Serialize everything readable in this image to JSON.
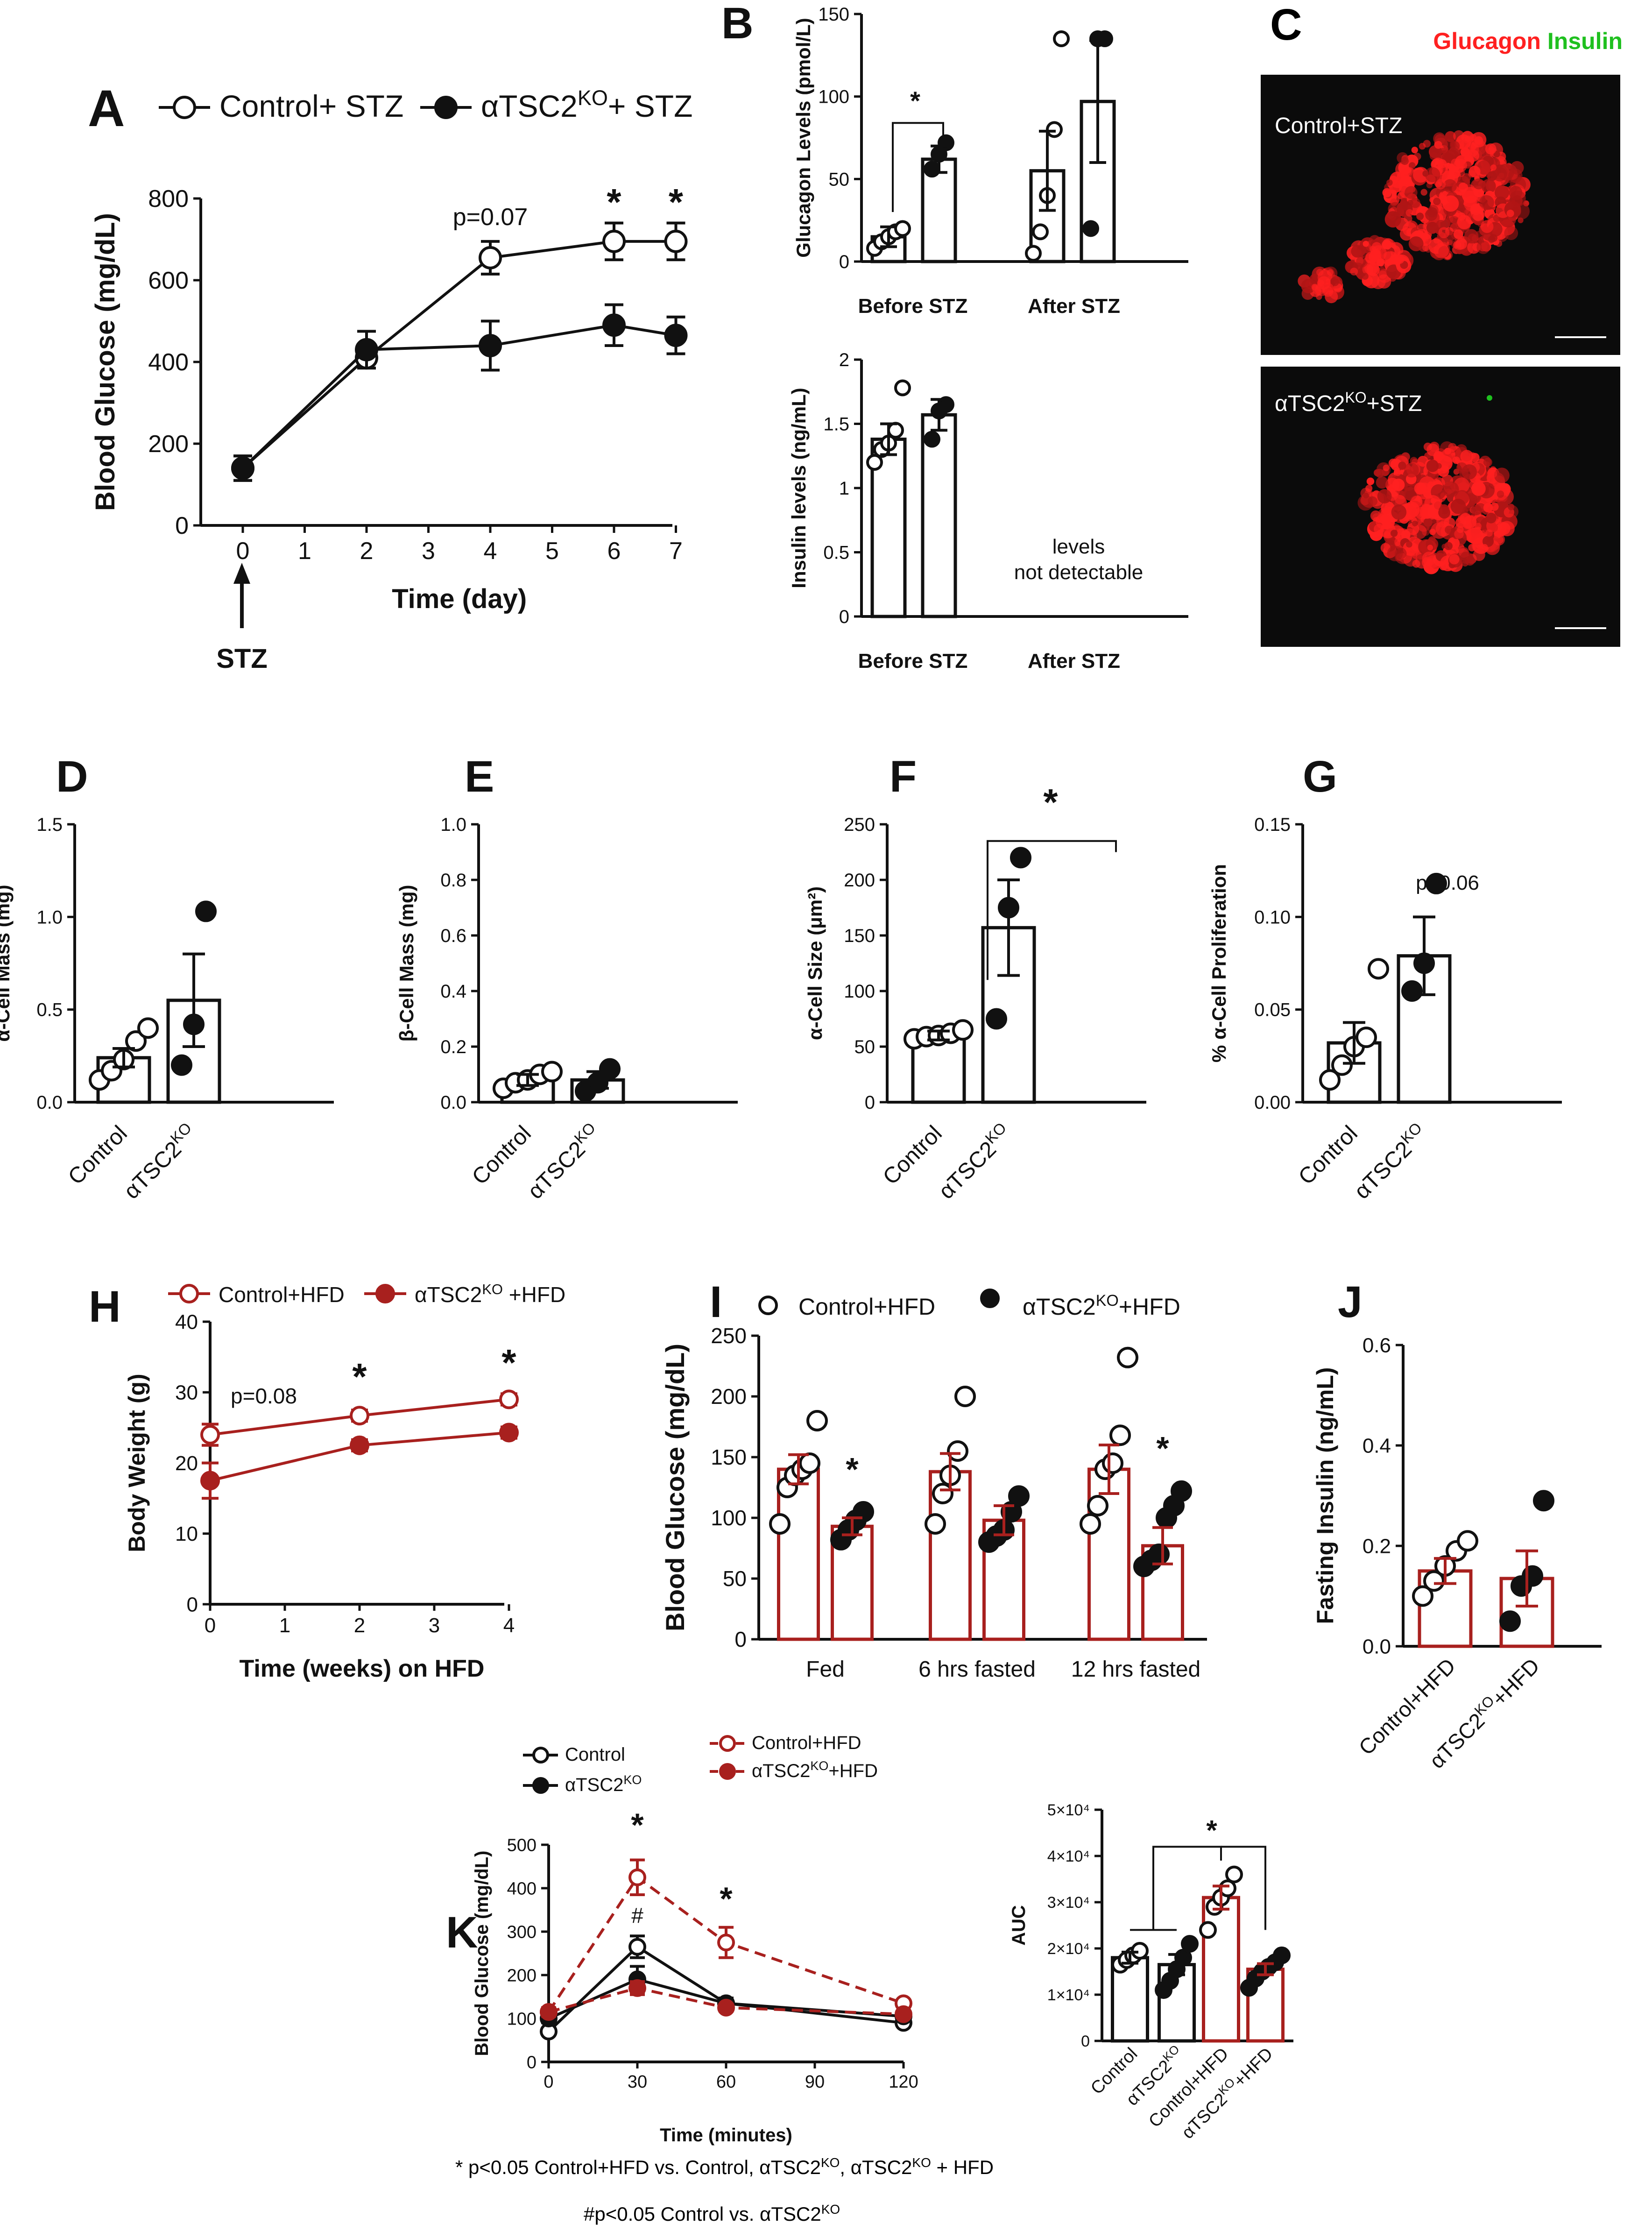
{
  "colors": {
    "black": "#111111",
    "red": "#a8201e",
    "micro_bg": "#0b0b0b",
    "glucagon": "#ff2020",
    "insulin": "#1fc01f"
  },
  "footnotes": {
    "line1": "* p<0.05 Control+HFD vs. Control, αTSC2KO, αTSC2KO + HFD",
    "line2": "#p<0.05 Control vs. αTSC2KO"
  },
  "micrographs": {
    "letter": "C",
    "title_glucagon": "Glucagon",
    "title_insulin": "Insulin",
    "top_label": "Control+STZ",
    "bottom_label": "αTSC2KO+STZ"
  },
  "chart_data": [
    {
      "id": "A",
      "type": "line",
      "letter": "A",
      "ylabel": "Blood Glucose (mg/dL)",
      "xlabel": "Time (day)",
      "ylim": [
        0,
        800
      ],
      "yticks": [
        0,
        200,
        400,
        600,
        800
      ],
      "xlim": [
        0,
        7
      ],
      "xticks": [
        0,
        1,
        2,
        3,
        4,
        5,
        6,
        7
      ],
      "x": [
        0,
        2,
        4,
        6,
        7
      ],
      "series": [
        {
          "name": "Control+ STZ",
          "marker": "open",
          "values": [
            140,
            410,
            655,
            695,
            695
          ],
          "errors": [
            30,
            25,
            40,
            45,
            45
          ]
        },
        {
          "name": "αTSC2KO+ STZ",
          "marker": "filled",
          "values": [
            140,
            430,
            440,
            490,
            465
          ],
          "errors": [
            30,
            45,
            60,
            50,
            45
          ]
        }
      ],
      "annotations": [
        {
          "text": "p=0.07",
          "x": 4
        },
        {
          "text": "*",
          "x": 6
        },
        {
          "text": "*",
          "x": 7
        }
      ],
      "arrow_label": "STZ"
    },
    {
      "id": "B1",
      "type": "bar",
      "letter": "B",
      "ylabel": "Glucagon Levels (pmol/L)",
      "ylim": [
        0,
        150
      ],
      "yticks": [
        0,
        50,
        100,
        150
      ],
      "group_labels": [
        "Before  STZ",
        "After STZ"
      ],
      "bars": [
        {
          "group": "Before STZ",
          "genotype": "Control",
          "mean": 15,
          "error": 6,
          "points": [
            8,
            12,
            15,
            18,
            20
          ]
        },
        {
          "group": "Before STZ",
          "genotype": "αTSC2KO",
          "mean": 62,
          "error": 8,
          "points": [
            56,
            65,
            72
          ]
        },
        {
          "group": "After STZ",
          "genotype": "Control",
          "mean": 55,
          "error": 24,
          "points": [
            5,
            18,
            40,
            80,
            135
          ]
        },
        {
          "group": "After STZ",
          "genotype": "αTSC2KO",
          "mean": 97,
          "error": 37,
          "points": [
            20,
            135,
            135
          ]
        }
      ],
      "significance": "*"
    },
    {
      "id": "B2",
      "type": "bar",
      "ylabel": "Insulin levels (ng/mL)",
      "ylim": [
        0,
        2.0
      ],
      "yticks": [
        0,
        0.5,
        1.0,
        1.5,
        2.0
      ],
      "group_labels": [
        "Before  STZ",
        "After STZ"
      ],
      "bars": [
        {
          "group": "Before STZ",
          "genotype": "Control",
          "mean": 1.38,
          "error": 0.12,
          "points": [
            1.2,
            1.3,
            1.35,
            1.45,
            1.78
          ]
        },
        {
          "group": "Before STZ",
          "genotype": "αTSC2KO",
          "mean": 1.57,
          "error": 0.12,
          "points": [
            1.38,
            1.6,
            1.65
          ]
        }
      ],
      "note": "levels not detectable"
    },
    {
      "id": "D",
      "type": "bar",
      "letter": "D",
      "ylabel": "α-Cell Mass (mg)",
      "ylim": [
        0,
        1.5
      ],
      "yticks": [
        0.0,
        0.5,
        1.0,
        1.5
      ],
      "categories": [
        "Control",
        "αTSC2KO"
      ],
      "bars": [
        {
          "mean": 0.24,
          "error": 0.05,
          "points": [
            0.12,
            0.17,
            0.23,
            0.33,
            0.4
          ]
        },
        {
          "mean": 0.55,
          "error": 0.25,
          "points": [
            0.2,
            0.42,
            1.03
          ]
        }
      ]
    },
    {
      "id": "E",
      "type": "bar",
      "letter": "E",
      "ylabel": "β-Cell Mass (mg)",
      "ylim": [
        0,
        1.0
      ],
      "yticks": [
        0.0,
        0.2,
        0.4,
        0.6,
        0.8,
        1.0
      ],
      "categories": [
        "Control",
        "αTSC2KO"
      ],
      "bars": [
        {
          "mean": 0.08,
          "error": 0.02,
          "points": [
            0.05,
            0.07,
            0.08,
            0.1,
            0.11
          ]
        },
        {
          "mean": 0.08,
          "error": 0.03,
          "points": [
            0.04,
            0.07,
            0.12
          ]
        }
      ]
    },
    {
      "id": "F",
      "type": "bar",
      "letter": "F",
      "ylabel": "α-Cell Size (μm²)",
      "ylim": [
        0,
        250
      ],
      "yticks": [
        0,
        50,
        100,
        150,
        200,
        250
      ],
      "categories": [
        "Control",
        "αTSC2KO"
      ],
      "bars": [
        {
          "mean": 60,
          "error": 4,
          "points": [
            57,
            59,
            60,
            62,
            65
          ]
        },
        {
          "mean": 157,
          "error": 43,
          "points": [
            75,
            175,
            220
          ]
        }
      ],
      "significance": "*"
    },
    {
      "id": "G",
      "type": "bar",
      "letter": "G",
      "ylabel": "% α-Cell Proliferation",
      "ylim": [
        0,
        0.15
      ],
      "yticks": [
        0.0,
        0.05,
        0.1,
        0.15
      ],
      "categories": [
        "Control",
        "αTSC2KO"
      ],
      "bars": [
        {
          "mean": 0.032,
          "error": 0.011,
          "points": [
            0.012,
            0.02,
            0.03,
            0.035,
            0.072
          ]
        },
        {
          "mean": 0.079,
          "error": 0.021,
          "points": [
            0.06,
            0.075,
            0.118
          ]
        }
      ],
      "annotation": "p=0.06"
    },
    {
      "id": "H",
      "type": "line",
      "letter": "H",
      "ylabel": "Body Weight (g)",
      "xlabel": "Time (weeks) on HFD",
      "ylim": [
        0,
        40
      ],
      "yticks": [
        0,
        10,
        20,
        30,
        40
      ],
      "xlim": [
        0,
        4
      ],
      "xticks": [
        0,
        1,
        2,
        3,
        4
      ],
      "x": [
        0,
        2,
        4
      ],
      "series": [
        {
          "name": "Control+HFD",
          "marker": "open",
          "values": [
            24,
            26.7,
            29
          ],
          "errors": [
            1.5,
            0.8,
            0.8
          ]
        },
        {
          "name": "αTSC2KO +HFD",
          "marker": "filled",
          "values": [
            17.5,
            22.5,
            24.3
          ],
          "errors": [
            2.5,
            0.8,
            0.8
          ]
        }
      ],
      "annotations": [
        {
          "text": "p=0.08",
          "x": 0.7
        },
        {
          "text": "*",
          "x": 2
        },
        {
          "text": "*",
          "x": 4
        }
      ]
    },
    {
      "id": "I",
      "type": "bar",
      "letter": "I",
      "ylabel": "Blood Glucose (mg/dL)",
      "ylim": [
        0,
        250
      ],
      "yticks": [
        0,
        50,
        100,
        150,
        200,
        250
      ],
      "categories": [
        "Fed",
        "6 hrs fasted",
        "12 hrs fasted"
      ],
      "legend": [
        "Control+HFD",
        "αTSC2KO+HFD"
      ],
      "bars": [
        {
          "mean": 140,
          "error": 12,
          "points": [
            95,
            125,
            135,
            140,
            145,
            180
          ]
        },
        {
          "mean": 93,
          "error": 7,
          "points": [
            82,
            90,
            98,
            105
          ]
        },
        {
          "mean": 138,
          "error": 15,
          "points": [
            95,
            120,
            135,
            155,
            200
          ]
        },
        {
          "mean": 98,
          "error": 12,
          "points": [
            80,
            85,
            90,
            105,
            118
          ]
        },
        {
          "mean": 140,
          "error": 20,
          "points": [
            95,
            110,
            140,
            145,
            168,
            232
          ]
        },
        {
          "mean": 77,
          "error": 15,
          "points": [
            60,
            65,
            70,
            100,
            110,
            122
          ]
        }
      ],
      "significance": [
        {
          "text": "*",
          "category": "Fed"
        },
        {
          "text": "*",
          "category": "12 hrs fasted"
        }
      ]
    },
    {
      "id": "J",
      "type": "bar",
      "letter": "J",
      "ylabel": "Fasting Insulin (ng/mL)",
      "ylim": [
        0,
        0.6
      ],
      "yticks": [
        0.0,
        0.2,
        0.4,
        0.6
      ],
      "categories": [
        "Control+HFD",
        "αTSC2KO+HFD"
      ],
      "bars": [
        {
          "mean": 0.15,
          "error": 0.025,
          "points": [
            0.1,
            0.13,
            0.16,
            0.19,
            0.21
          ]
        },
        {
          "mean": 0.135,
          "error": 0.055,
          "points": [
            0.05,
            0.12,
            0.14,
            0.29
          ]
        }
      ]
    },
    {
      "id": "K1",
      "type": "line",
      "letter": "K",
      "ylabel": "Blood Glucose (mg/dL)",
      "xlabel": "Time (minutes)",
      "ylim": [
        0,
        500
      ],
      "yticks": [
        0,
        100,
        200,
        300,
        400,
        500
      ],
      "xlim": [
        0,
        120
      ],
      "xticks": [
        0,
        30,
        60,
        90,
        120
      ],
      "x": [
        0,
        30,
        60,
        120
      ],
      "series": [
        {
          "name": "Control",
          "marker": "open",
          "color": "black",
          "dash": false,
          "values": [
            70,
            265,
            135,
            90
          ],
          "errors": [
            8,
            25,
            12,
            8
          ]
        },
        {
          "name": "αTSC2KO",
          "marker": "filled",
          "color": "black",
          "dash": false,
          "values": [
            100,
            190,
            135,
            105
          ],
          "errors": [
            10,
            30,
            12,
            8
          ]
        },
        {
          "name": "Control+HFD",
          "marker": "open",
          "color": "red",
          "dash": true,
          "values": [
            115,
            425,
            275,
            135
          ],
          "errors": [
            10,
            40,
            35,
            8
          ]
        },
        {
          "name": "αTSC2KO+HFD",
          "marker": "filled",
          "color": "red",
          "dash": true,
          "values": [
            115,
            170,
            125,
            110
          ],
          "errors": [
            10,
            15,
            8,
            6
          ]
        }
      ],
      "annotations": [
        {
          "text": "*",
          "x": 30
        },
        {
          "text": "#",
          "x": 30
        },
        {
          "text": "*",
          "x": 60
        }
      ]
    },
    {
      "id": "K2",
      "type": "bar",
      "ylabel": "AUC",
      "ylim": [
        0,
        50000
      ],
      "ytick_labels": [
        "0",
        "1×10⁴",
        "2×10⁴",
        "3×10⁴",
        "4×10⁴",
        "5×10⁴"
      ],
      "yticks": [
        0,
        10000,
        20000,
        30000,
        40000,
        50000
      ],
      "categories": [
        "Control",
        "αTSC2KO",
        "Control+HFD",
        "αTSC2KO+HFD"
      ],
      "bars": [
        {
          "mean": 18000,
          "error": 1200,
          "points": [
            16500,
            17500,
            18500,
            19500
          ]
        },
        {
          "mean": 16500,
          "error": 2200,
          "points": [
            11000,
            13000,
            15500,
            18000,
            21000
          ]
        },
        {
          "mean": 31000,
          "error": 2500,
          "points": [
            24000,
            29000,
            31000,
            33000,
            36000
          ]
        },
        {
          "mean": 15500,
          "error": 1200,
          "points": [
            11500,
            13500,
            15000,
            16000,
            17000,
            18500
          ]
        }
      ],
      "significance": "*"
    }
  ]
}
